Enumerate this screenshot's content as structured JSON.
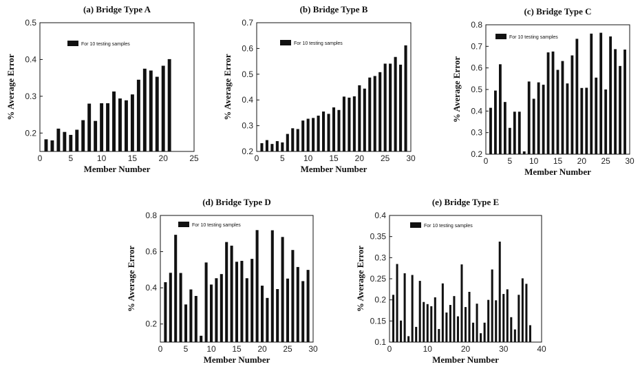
{
  "legend_label": "For 10 testing samples",
  "chart_data": [
    {
      "type": "bar",
      "title": "(a) Bridge Type A",
      "xlabel": "Member Number",
      "ylabel": "% Average Error",
      "xlim": [
        0,
        25
      ],
      "ylim": [
        0.15,
        0.5
      ],
      "xticks": [
        0,
        5,
        10,
        15,
        20,
        25
      ],
      "yticks": [
        0.2,
        0.3,
        0.4,
        0.5
      ],
      "yticklabels": [
        "0.2",
        "0.3",
        "0.4",
        "0.5"
      ],
      "legend": "For 10 testing samples",
      "x": [
        1,
        2,
        3,
        4,
        5,
        6,
        7,
        8,
        9,
        10,
        11,
        12,
        13,
        14,
        15,
        16,
        17,
        18,
        19,
        20,
        21
      ],
      "values": [
        0.183,
        0.18,
        0.212,
        0.203,
        0.195,
        0.209,
        0.235,
        0.28,
        0.233,
        0.281,
        0.281,
        0.313,
        0.294,
        0.289,
        0.305,
        0.345,
        0.375,
        0.37,
        0.353,
        0.383,
        0.401
      ]
    },
    {
      "type": "bar",
      "title": "(b) Bridge Type B",
      "xlabel": "Member Number",
      "ylabel": "% Average Error",
      "xlim": [
        0,
        30
      ],
      "ylim": [
        0.2,
        0.7
      ],
      "xticks": [
        0,
        5,
        10,
        15,
        20,
        25,
        30
      ],
      "yticks": [
        0.2,
        0.3,
        0.4,
        0.5,
        0.6,
        0.7
      ],
      "yticklabels": [
        "0.2",
        "0.3",
        "0.4",
        "0.5",
        "0.6",
        "0.7"
      ],
      "legend": "For 10 testing samples",
      "x": [
        1,
        2,
        3,
        4,
        5,
        6,
        7,
        8,
        9,
        10,
        11,
        12,
        13,
        14,
        15,
        16,
        17,
        18,
        19,
        20,
        21,
        22,
        23,
        24,
        25,
        26,
        27,
        28,
        29
      ],
      "values": [
        0.232,
        0.244,
        0.229,
        0.24,
        0.235,
        0.268,
        0.29,
        0.287,
        0.32,
        0.327,
        0.33,
        0.339,
        0.355,
        0.346,
        0.371,
        0.361,
        0.413,
        0.409,
        0.414,
        0.457,
        0.444,
        0.487,
        0.493,
        0.508,
        0.541,
        0.541,
        0.567,
        0.537,
        0.612
      ]
    },
    {
      "type": "bar",
      "title": "(c) Bridge Type C",
      "xlabel": "Member Number",
      "ylabel": "% Average Error",
      "xlim": [
        0,
        30
      ],
      "ylim": [
        0.2,
        0.8
      ],
      "xticks": [
        0,
        5,
        10,
        15,
        20,
        25,
        30
      ],
      "yticks": [
        0.2,
        0.3,
        0.4,
        0.5,
        0.6,
        0.7,
        0.8
      ],
      "yticklabels": [
        "0.2",
        "0.3",
        "0.4",
        "0.5",
        "0.6",
        "0.7",
        "0.8"
      ],
      "legend": "For 10 testing samples",
      "x": [
        1,
        2,
        3,
        4,
        5,
        6,
        7,
        8,
        9,
        10,
        11,
        12,
        13,
        14,
        15,
        16,
        17,
        18,
        19,
        20,
        21,
        22,
        23,
        24,
        25,
        26,
        27,
        28,
        29
      ],
      "values": [
        0.415,
        0.495,
        0.617,
        0.442,
        0.322,
        0.397,
        0.397,
        0.213,
        0.537,
        0.457,
        0.533,
        0.522,
        0.672,
        0.676,
        0.591,
        0.632,
        0.528,
        0.658,
        0.735,
        0.507,
        0.508,
        0.759,
        0.555,
        0.763,
        0.5,
        0.746,
        0.687,
        0.609,
        0.685
      ]
    },
    {
      "type": "bar",
      "title": "(d) Bridge Type D",
      "xlabel": "Member Number",
      "ylabel": "% Average Error",
      "xlim": [
        0,
        30
      ],
      "ylim": [
        0.1,
        0.8
      ],
      "xticks": [
        0,
        5,
        10,
        15,
        20,
        25,
        30
      ],
      "yticks": [
        0.2,
        0.4,
        0.6,
        0.8
      ],
      "yticklabels": [
        "0.2",
        "0.4",
        "0.6",
        "0.8"
      ],
      "legend": "For 10 testing samples",
      "x": [
        1,
        2,
        3,
        4,
        5,
        6,
        7,
        8,
        9,
        10,
        11,
        12,
        13,
        14,
        15,
        16,
        17,
        18,
        19,
        20,
        21,
        22,
        23,
        24,
        25,
        26,
        27,
        28,
        29
      ],
      "values": [
        0.431,
        0.483,
        0.693,
        0.482,
        0.308,
        0.391,
        0.355,
        0.135,
        0.54,
        0.418,
        0.453,
        0.476,
        0.653,
        0.633,
        0.544,
        0.549,
        0.453,
        0.56,
        0.719,
        0.412,
        0.344,
        0.718,
        0.393,
        0.681,
        0.451,
        0.609,
        0.515,
        0.437,
        0.499
      ]
    },
    {
      "type": "bar",
      "title": "(e) Bridge Type E",
      "xlabel": "Member Number",
      "ylabel": "% Average Error",
      "xlim": [
        0,
        40
      ],
      "ylim": [
        0.1,
        0.4
      ],
      "xticks": [
        0,
        10,
        20,
        30,
        40
      ],
      "yticks": [
        0.1,
        0.15,
        0.2,
        0.25,
        0.3,
        0.35,
        0.4
      ],
      "yticklabels": [
        "0.1",
        "0.15",
        "0.2",
        "0.25",
        "0.3",
        "0.35",
        "0.4"
      ],
      "legend": "For 10 testing samples",
      "x": [
        1,
        2,
        3,
        4,
        5,
        6,
        7,
        8,
        9,
        10,
        11,
        12,
        13,
        14,
        15,
        16,
        17,
        18,
        19,
        20,
        21,
        22,
        23,
        24,
        25,
        26,
        27,
        28,
        29,
        30,
        31,
        32,
        33,
        34,
        35,
        36,
        37
      ],
      "values": [
        0.212,
        0.285,
        0.151,
        0.263,
        0.114,
        0.259,
        0.136,
        0.245,
        0.195,
        0.19,
        0.185,
        0.206,
        0.131,
        0.239,
        0.17,
        0.188,
        0.209,
        0.161,
        0.284,
        0.183,
        0.219,
        0.146,
        0.191,
        0.121,
        0.146,
        0.2,
        0.272,
        0.199,
        0.338,
        0.214,
        0.225,
        0.159,
        0.13,
        0.212,
        0.251,
        0.238,
        0.14
      ]
    }
  ]
}
